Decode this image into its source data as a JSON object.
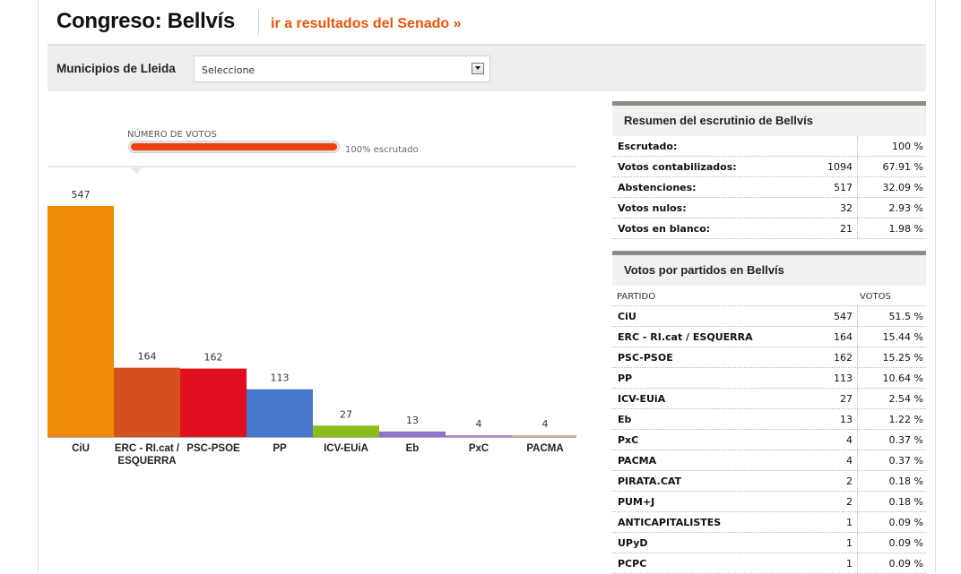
{
  "header": {
    "title": "Congreso: Bellvís",
    "senado_link": "ir a resultados del Senado »"
  },
  "selector": {
    "label": "Municipios de Lleida",
    "value": "Seleccione"
  },
  "progress": {
    "label": "NÚMERO DE VOTOS",
    "status_text": "100% escrutado",
    "fraction": 1.0
  },
  "colors": {
    "accent": "#e8560a",
    "progress_fill": "#e8420a"
  },
  "chart_data": {
    "type": "bar",
    "categories": [
      "CiU",
      "ERC - RI.cat / ESQUERRA",
      "PSC-PSOE",
      "PP",
      "ICV-EUiA",
      "Eb",
      "PxC",
      "PACMA"
    ],
    "category_lines": [
      [
        "CiU"
      ],
      [
        "ERC - RI.cat /",
        "ESQUERRA"
      ],
      [
        "PSC-PSOE"
      ],
      [
        "PP"
      ],
      [
        "ICV-EUiA"
      ],
      [
        "Eb"
      ],
      [
        "PxC"
      ],
      [
        "PACMA"
      ]
    ],
    "values": [
      547,
      164,
      162,
      113,
      27,
      13,
      4,
      4
    ],
    "colors": [
      "#ef8a07",
      "#d4501e",
      "#e2101f",
      "#4778cc",
      "#8dbd1b",
      "#8c74cc",
      "#b57ad0",
      "#d9a98a"
    ],
    "ylim": [
      0,
      547
    ],
    "grid": false,
    "legend": "none"
  },
  "summary": {
    "title": "Resumen del escrutinio de Bellvís",
    "rows": [
      {
        "label": "Escrutado:",
        "num": "",
        "pct": "100 %"
      },
      {
        "label": "Votos contabilizados:",
        "num": "1094",
        "pct": "67.91 %"
      },
      {
        "label": "Abstenciones:",
        "num": "517",
        "pct": "32.09 %"
      },
      {
        "label": "Votos nulos:",
        "num": "32",
        "pct": "2.93 %"
      },
      {
        "label": "Votos en blanco:",
        "num": "21",
        "pct": "1.98 %"
      }
    ]
  },
  "parties": {
    "title": "Votos por partidos en Bellvís",
    "col_party": "PARTIDO",
    "col_votes": "VOTOS",
    "rows": [
      {
        "label": "CiU",
        "num": "547",
        "pct": "51.5 %"
      },
      {
        "label": "ERC - RI.cat / ESQUERRA",
        "num": "164",
        "pct": "15.44 %"
      },
      {
        "label": "PSC-PSOE",
        "num": "162",
        "pct": "15.25 %"
      },
      {
        "label": "PP",
        "num": "113",
        "pct": "10.64 %"
      },
      {
        "label": "ICV-EUiA",
        "num": "27",
        "pct": "2.54 %"
      },
      {
        "label": "Eb",
        "num": "13",
        "pct": "1.22 %"
      },
      {
        "label": "PxC",
        "num": "4",
        "pct": "0.37 %"
      },
      {
        "label": "PACMA",
        "num": "4",
        "pct": "0.37 %"
      },
      {
        "label": "PIRATA.CAT",
        "num": "2",
        "pct": "0.18 %"
      },
      {
        "label": "PUM+J",
        "num": "2",
        "pct": "0.18 %"
      },
      {
        "label": "ANTICAPITALISTES",
        "num": "1",
        "pct": "0.09 %"
      },
      {
        "label": "UPyD",
        "num": "1",
        "pct": "0.09 %"
      },
      {
        "label": "PCPC",
        "num": "1",
        "pct": "0.09 %"
      }
    ]
  }
}
